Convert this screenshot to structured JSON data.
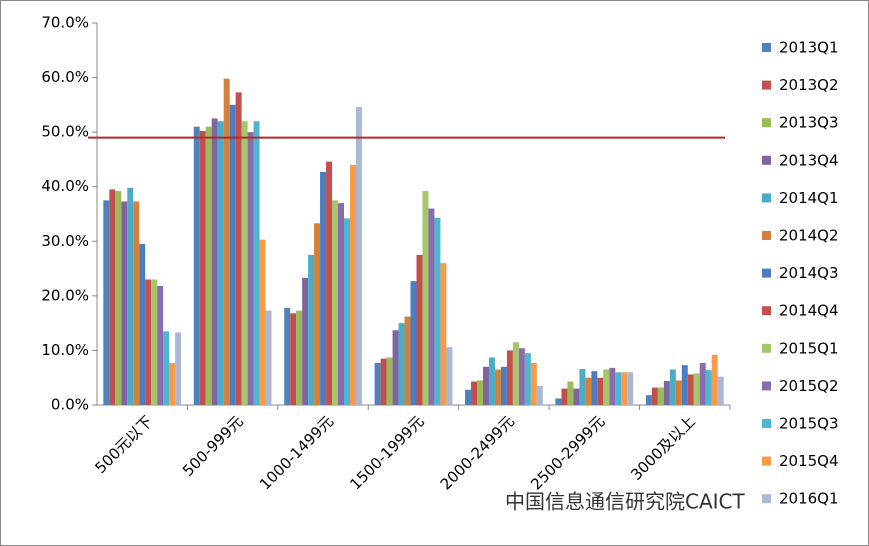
{
  "chart_data": {
    "type": "bar",
    "categories": [
      "500元以下",
      "500-999元",
      "1000-1499元",
      "1500-1999元",
      "2000-2499元",
      "2500-2999元",
      "3000及以上"
    ],
    "series": [
      {
        "name": "2013Q1",
        "color": "#4F81BD",
        "values": [
          37.5,
          51,
          17.8,
          7.7,
          2.8,
          1.2,
          1.8
        ]
      },
      {
        "name": "2013Q2",
        "color": "#C0504D",
        "values": [
          39.5,
          50.2,
          16.8,
          8.5,
          4.3,
          3,
          3.2
        ]
      },
      {
        "name": "2013Q3",
        "color": "#9BBB59",
        "values": [
          39.2,
          51,
          17.3,
          8.7,
          4.5,
          4.3,
          3.2
        ]
      },
      {
        "name": "2013Q4",
        "color": "#8064A2",
        "values": [
          37.3,
          52.5,
          23.3,
          13.7,
          7,
          3,
          4.4
        ]
      },
      {
        "name": "2014Q1",
        "color": "#4BACC6",
        "values": [
          39.8,
          52,
          27.5,
          15,
          8.7,
          6.6,
          6.5
        ]
      },
      {
        "name": "2014Q2",
        "color": "#D4803A",
        "values": [
          37.3,
          59.8,
          33.3,
          16.2,
          6.5,
          5,
          4.5
        ]
      },
      {
        "name": "2014Q3",
        "color": "#4A7EC0",
        "values": [
          29.5,
          55,
          42.7,
          22.7,
          7,
          6.2,
          7.3
        ]
      },
      {
        "name": "2014Q4",
        "color": "#C4504D",
        "values": [
          23,
          57.3,
          44.6,
          27.5,
          10,
          5,
          5.6
        ]
      },
      {
        "name": "2015Q1",
        "color": "#A5C66A",
        "values": [
          23,
          52,
          37.5,
          39.2,
          11.5,
          6.5,
          5.8
        ]
      },
      {
        "name": "2015Q2",
        "color": "#8A6BAE",
        "values": [
          21.8,
          50,
          37,
          36,
          10.4,
          6.8,
          7.7
        ]
      },
      {
        "name": "2015Q3",
        "color": "#4FB6CF",
        "values": [
          13.5,
          52,
          34.2,
          34.3,
          9.5,
          6,
          6.4
        ]
      },
      {
        "name": "2015Q4",
        "color": "#F79A4A",
        "values": [
          7.7,
          30.3,
          44,
          26,
          7.7,
          6,
          9.2
        ]
      },
      {
        "name": "2016Q1",
        "color": "#A9B8D6",
        "values": [
          13.3,
          17.3,
          54.6,
          10.6,
          3.5,
          6,
          5.2
        ]
      }
    ],
    "ylim": [
      0,
      70
    ],
    "yticks": [
      {
        "value": 0,
        "label": "0.0%"
      },
      {
        "value": 10,
        "label": "10.0%"
      },
      {
        "value": 20,
        "label": "20.0%"
      },
      {
        "value": 30,
        "label": "30.0%"
      },
      {
        "value": 40,
        "label": "40.0%"
      },
      {
        "value": 50,
        "label": "50.0%"
      },
      {
        "value": 60,
        "label": "60.0%"
      },
      {
        "value": 70,
        "label": "70.0%"
      }
    ],
    "reference_line": {
      "value": 49,
      "color": "#B22A2A"
    },
    "legend": "right",
    "watermark": "中国信息通信研究院CAICT"
  }
}
